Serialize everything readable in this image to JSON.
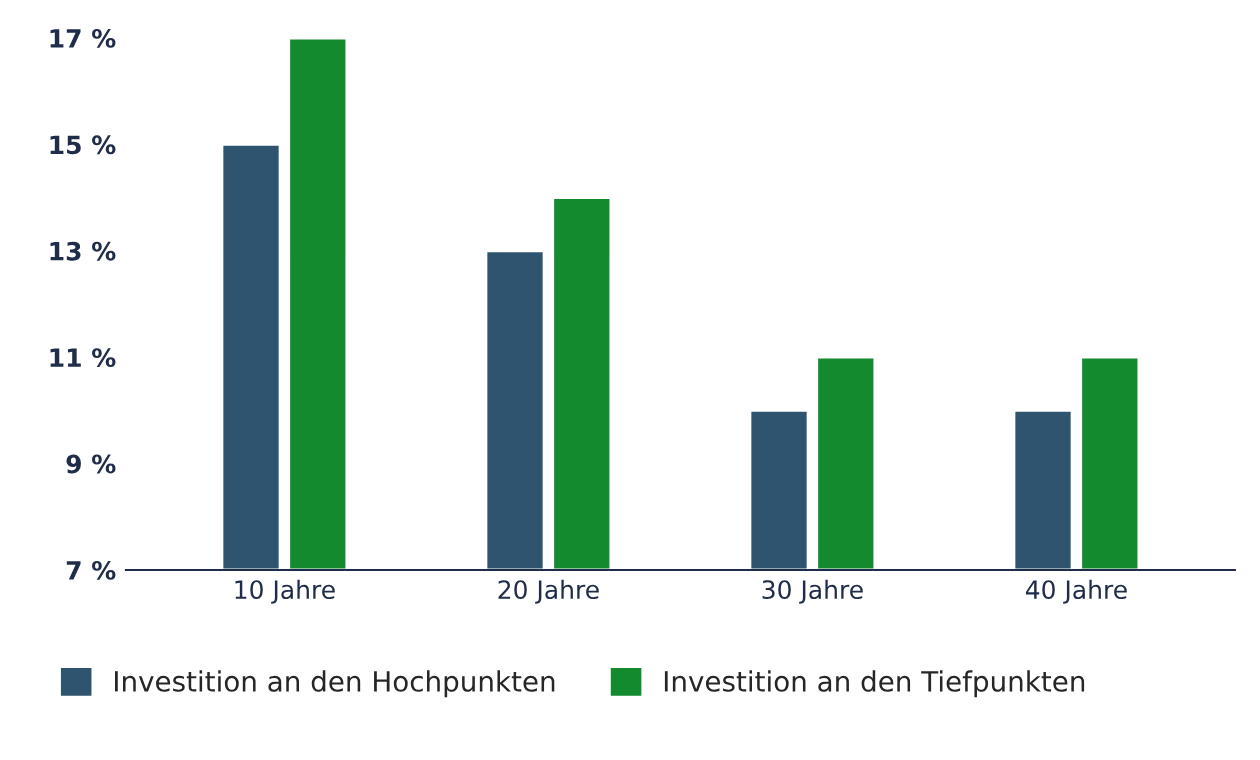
{
  "chart_data": {
    "type": "bar",
    "categories": [
      "10 Jahre",
      "20 Jahre",
      "30 Jahre",
      "40 Jahre"
    ],
    "series": [
      {
        "name": "Investition an den Hochpunkten",
        "color": "#2e5470",
        "values": [
          15,
          13,
          10,
          10
        ]
      },
      {
        "name": "Investition an den Tiefpunkten",
        "color": "#138a2d",
        "values": [
          17,
          14,
          11,
          11
        ]
      }
    ],
    "ylim": [
      7,
      17
    ],
    "yticks": [
      {
        "value": 7,
        "label": "7 %"
      },
      {
        "value": 9,
        "label": "9 %"
      },
      {
        "value": 11,
        "label": "11 %"
      },
      {
        "value": 13,
        "label": "13 %"
      },
      {
        "value": 15,
        "label": "15 %"
      },
      {
        "value": 17,
        "label": "17 %"
      }
    ],
    "grid": false,
    "legend": "bottom"
  }
}
